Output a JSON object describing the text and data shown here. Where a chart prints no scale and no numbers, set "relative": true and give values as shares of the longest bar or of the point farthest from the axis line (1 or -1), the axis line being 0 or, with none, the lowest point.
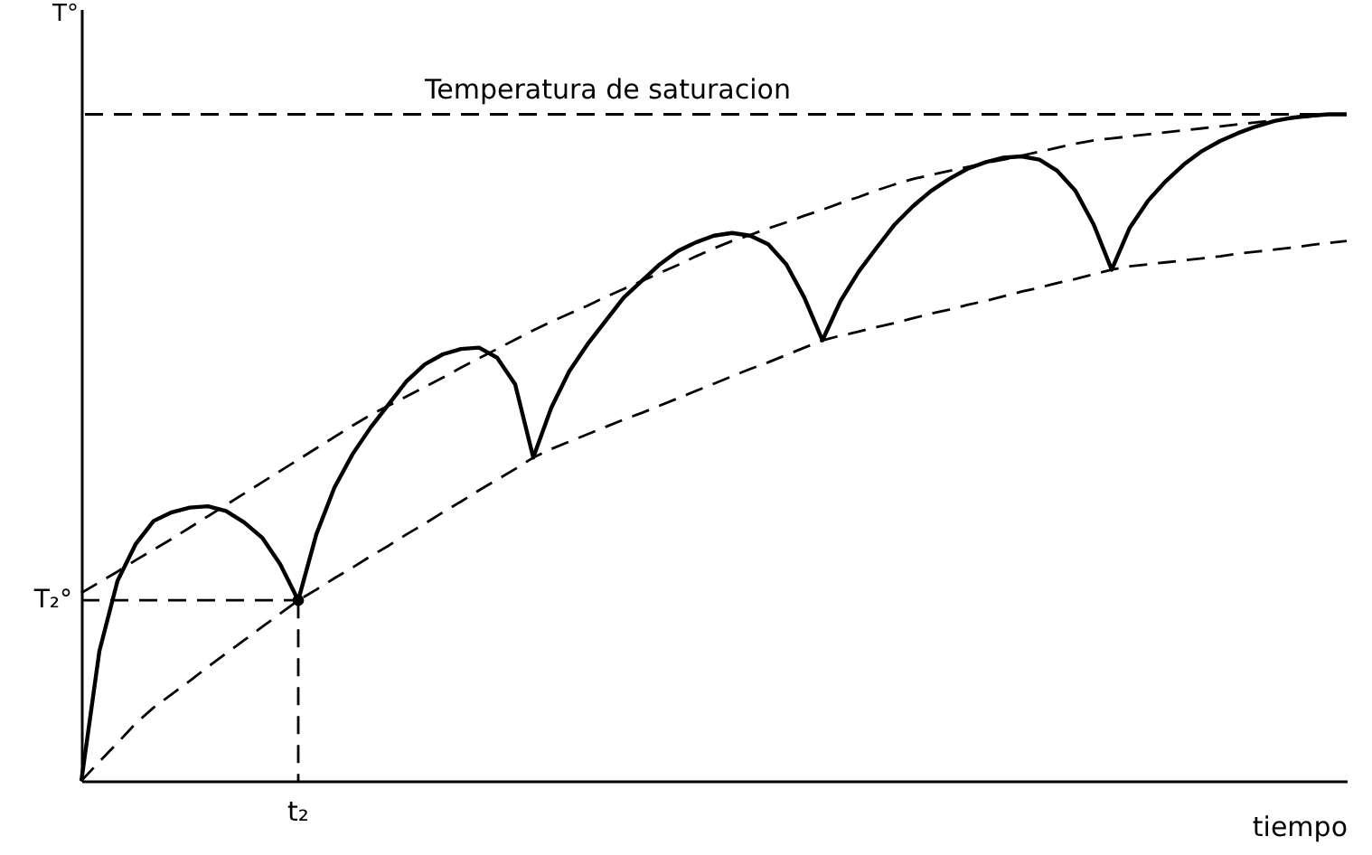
{
  "chart_data": {
    "type": "line",
    "relative": true,
    "ylabel": "T°",
    "xlabel": "tiempo",
    "grid": false,
    "annotations": [
      "T₂°",
      "t₂"
    ],
    "ref_lines": [
      {
        "axis": "y",
        "value": 1,
        "label": "Temperatura de saturacion",
        "color": "#000000",
        "line_style": "dashed"
      }
    ],
    "categories": [
      null,
      null,
      null,
      null,
      null,
      null,
      null,
      null,
      null,
      null,
      null,
      null,
      null,
      null,
      null,
      null,
      null,
      null,
      null,
      null,
      null,
      null,
      null,
      null,
      null,
      null,
      null,
      null,
      null,
      null,
      null,
      null,
      null,
      null,
      null,
      null,
      null,
      null,
      null,
      null,
      null,
      null,
      null,
      null,
      null,
      null,
      null,
      null,
      null,
      null,
      null,
      null,
      null,
      null,
      null,
      null,
      null,
      null,
      null,
      null,
      null,
      null,
      null,
      null,
      null,
      null,
      null,
      null,
      null,
      null,
      null
    ],
    "series": [
      {
        "color": "#000000",
        "line_style": "dashed",
        "marker": "none",
        "values": [
          0.282,
          0.298,
          0.314,
          0.331,
          0.347,
          0.363,
          0.38,
          0.397,
          0.414,
          0.431,
          0.448,
          0.465,
          0.482,
          0.499,
          0.516,
          0.533,
          0.549,
          0.563,
          0.577,
          0.591,
          0.605,
          0.62,
          0.634,
          0.648,
          0.662,
          0.676,
          0.689,
          0.701,
          0.713,
          0.726,
          0.738,
          0.75,
          0.762,
          0.774,
          0.787,
          0.799,
          0.81,
          0.819,
          0.829,
          0.838,
          0.848,
          0.857,
          0.867,
          0.876,
          0.886,
          0.895,
          0.903,
          0.909,
          0.915,
          0.921,
          0.927,
          0.932,
          0.938,
          0.944,
          0.95,
          0.956,
          0.961,
          0.964,
          0.967,
          0.97,
          0.973,
          0.976,
          0.979,
          0.982,
          0.985,
          0.988,
          0.991,
          0.994,
          0.997,
          1.0,
          1.0
        ]
      },
      {
        "color": "#000000",
        "line_style": "dashed",
        "marker": "none",
        "values": [
          0,
          0.029,
          0.057,
          0.086,
          0.11,
          0.13,
          0.15,
          0.171,
          0.191,
          0.211,
          0.231,
          0.251,
          0.271,
          0.287,
          0.304,
          0.32,
          0.337,
          0.353,
          0.37,
          0.386,
          0.403,
          0.419,
          0.436,
          0.452,
          0.468,
          0.485,
          0.498,
          0.509,
          0.52,
          0.531,
          0.542,
          0.552,
          0.563,
          0.574,
          0.585,
          0.596,
          0.607,
          0.618,
          0.628,
          0.639,
          0.65,
          0.661,
          0.668,
          0.674,
          0.681,
          0.687,
          0.694,
          0.701,
          0.707,
          0.714,
          0.72,
          0.727,
          0.734,
          0.74,
          0.747,
          0.753,
          0.76,
          0.767,
          0.772,
          0.775,
          0.778,
          0.781,
          0.784,
          0.787,
          0.791,
          0.794,
          0.797,
          0.8,
          0.804,
          0.807,
          0.81
        ]
      },
      {
        "color": "#000000",
        "line_style": "solid",
        "marker": "none",
        "values": [
          0,
          0.195,
          0.3,
          0.355,
          0.39,
          0.403,
          0.41,
          0.412,
          0.405,
          0.388,
          0.365,
          0.325,
          0.271,
          0.37,
          0.44,
          0.49,
          0.53,
          0.565,
          0.6,
          0.625,
          0.64,
          0.648,
          0.65,
          0.635,
          0.595,
          0.485,
          0.56,
          0.615,
          0.655,
          0.69,
          0.725,
          0.75,
          0.775,
          0.795,
          0.808,
          0.818,
          0.822,
          0.818,
          0.805,
          0.775,
          0.725,
          0.661,
          0.72,
          0.764,
          0.8,
          0.835,
          0.862,
          0.885,
          0.903,
          0.918,
          0.928,
          0.935,
          0.937,
          0.932,
          0.915,
          0.885,
          0.835,
          0.767,
          0.83,
          0.87,
          0.9,
          0.925,
          0.945,
          0.96,
          0.972,
          0.982,
          0.99,
          0.995,
          0.998,
          1.0,
          1.0
        ]
      },
      {
        "color": "#000000",
        "line_style": "dashed",
        "marker": "none",
        "values": [
          0.271,
          0.271,
          0.271,
          0.271,
          0.271,
          0.271,
          0.271,
          0.271,
          0.271,
          0.271,
          0.271,
          0.271,
          0.271,
          null,
          null,
          null,
          null,
          null,
          null,
          null,
          null,
          null,
          null,
          null,
          null,
          null,
          null,
          null,
          null,
          null,
          null,
          null,
          null,
          null,
          null,
          null,
          null,
          null,
          null,
          null,
          null,
          null,
          null,
          null,
          null,
          null,
          null,
          null,
          null,
          null,
          null,
          null,
          null,
          null,
          null,
          null,
          null,
          null,
          null,
          null,
          null,
          null,
          null,
          null,
          null,
          null,
          null,
          null,
          null,
          null,
          null
        ]
      }
    ]
  }
}
